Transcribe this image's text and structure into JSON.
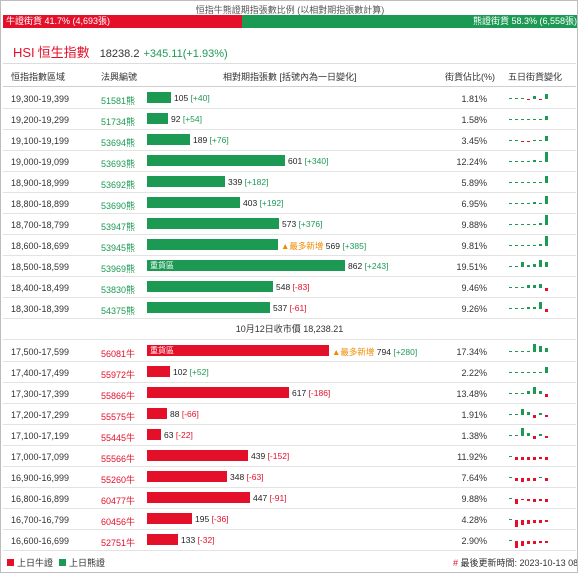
{
  "ratio": {
    "title": "恒指牛熊證期指張數比例 (以相對期指張數計算)",
    "bull_label": "牛證街貨 41.7% (4,693張)",
    "bear_label": "熊證街貨 58.3% (6,558張)",
    "bull_pct": 41.7,
    "bear_pct": 58.3,
    "bull_color": "#e4102a",
    "bear_color": "#1c9a54"
  },
  "index": {
    "code": "HSI",
    "name": "恒生指數",
    "value": "18238.2",
    "change": "+345.11(+1.93%)"
  },
  "headers": {
    "range": "恒指指數區域",
    "code": "法興編號",
    "contracts": "相對期指張數 [括號內為一日變化]",
    "street": "街貨佔比(%)",
    "five_day": "五日街貨變化"
  },
  "close_label": "10月12日收市價 18,238.21",
  "max_contracts": 862,
  "bear_rows": [
    {
      "range": "19,300-19,399",
      "code": "51581熊",
      "count": 105,
      "count_text": "105",
      "delta": "[+40]",
      "est": "1.81%",
      "spark": [
        0,
        0,
        1,
        -0.5,
        3,
        -1,
        6
      ]
    },
    {
      "range": "19,200-19,299",
      "code": "51734熊",
      "count": 92,
      "count_text": "92",
      "delta": "[+54]",
      "est": "1.58%",
      "spark": [
        0,
        0,
        0,
        0,
        1,
        1,
        5
      ]
    },
    {
      "range": "19,100-19,199",
      "code": "53694熊",
      "count": 189,
      "count_text": "189",
      "delta": "[+76]",
      "est": "3.45%",
      "spark": [
        0,
        0,
        -1,
        -1,
        1,
        1,
        6
      ]
    },
    {
      "range": "19,000-19,099",
      "code": "53693熊",
      "count": 601,
      "count_text": "601",
      "delta": "[+340]",
      "est": "12.24%",
      "spark": [
        0,
        0,
        1,
        1,
        2,
        1,
        12
      ]
    },
    {
      "range": "18,900-18,999",
      "code": "53692熊",
      "count": 339,
      "count_text": "339",
      "delta": "[+182]",
      "est": "5.89%",
      "spark": [
        0,
        0,
        1,
        1,
        1,
        1,
        8
      ]
    },
    {
      "range": "18,800-18,899",
      "code": "53690熊",
      "count": 403,
      "count_text": "403",
      "delta": "[+192]",
      "est": "6.95%",
      "spark": [
        0,
        0,
        1,
        1,
        2,
        1,
        9
      ]
    },
    {
      "range": "18,700-18,799",
      "code": "53947熊",
      "count": 573,
      "count_text": "573",
      "delta": "[+376]",
      "est": "9.88%",
      "spark": [
        0,
        0,
        1,
        1,
        1,
        2,
        12
      ]
    },
    {
      "range": "18,600-18,699",
      "code": "53945熊",
      "count": 569,
      "count_text": "569",
      "delta": "[+385]",
      "est": "9.81%",
      "badge": "▲最多新增",
      "spark": [
        0,
        0,
        1,
        1,
        1,
        2,
        12
      ]
    },
    {
      "range": "18,500-18,599",
      "code": "53969熊",
      "count": 862,
      "count_text": "862",
      "delta": "[+243]",
      "est": "19.51%",
      "inbar": "重貨區",
      "spark": [
        0,
        0,
        6,
        2,
        4,
        8,
        6
      ]
    },
    {
      "range": "18,400-18,499",
      "code": "53830熊",
      "count": 548,
      "count_text": "548",
      "delta": "[-83]",
      "est": "9.46%",
      "spark": [
        0,
        0,
        1,
        3,
        4,
        5,
        -4
      ]
    },
    {
      "range": "18,300-18,399",
      "code": "54375熊",
      "count": 537,
      "count_text": "537",
      "delta": "[-61]",
      "est": "9.26%",
      "spark": [
        0,
        0,
        1,
        2,
        2,
        8,
        -3
      ]
    }
  ],
  "bull_rows": [
    {
      "range": "17,500-17,599",
      "code": "56081牛",
      "count": 794,
      "count_text": "794",
      "delta": "[+280]",
      "est": "17.34%",
      "inbar": "重貨區",
      "badge": "▲最多新增",
      "spark": [
        0,
        0,
        0,
        1,
        9,
        7,
        5
      ]
    },
    {
      "range": "17,400-17,499",
      "code": "55972牛",
      "count": 102,
      "count_text": "102",
      "delta": "[+52]",
      "est": "2.22%",
      "spark": [
        0,
        0,
        0,
        0,
        0,
        1,
        7
      ]
    },
    {
      "range": "17,300-17,399",
      "code": "55866牛",
      "count": 617,
      "count_text": "617",
      "delta": "[-186]",
      "est": "13.48%",
      "spark": [
        0,
        1,
        0,
        3,
        8,
        4,
        -3
      ]
    },
    {
      "range": "17,200-17,299",
      "code": "55575牛",
      "count": 88,
      "count_text": "88",
      "delta": "[-66]",
      "est": "1.91%",
      "spark": [
        0,
        0,
        7,
        4,
        -3,
        2,
        -2
      ]
    },
    {
      "range": "17,100-17,199",
      "code": "55445牛",
      "count": 63,
      "count_text": "63",
      "delta": "[-22]",
      "est": "1.38%",
      "spark": [
        0,
        0,
        9,
        3,
        -3,
        2,
        -2
      ]
    },
    {
      "range": "17,000-17,099",
      "code": "55566牛",
      "count": 439,
      "count_text": "439",
      "delta": "[-152]",
      "est": "11.92%",
      "spark": [
        0,
        -3,
        -4,
        -3,
        -4,
        -2,
        -4
      ]
    },
    {
      "range": "16,900-16,999",
      "code": "55260牛",
      "count": 348,
      "count_text": "348",
      "delta": "[-63]",
      "est": "7.64%",
      "spark": [
        0,
        -3,
        -5,
        -3,
        -4,
        1,
        -3
      ]
    },
    {
      "range": "16,800-16,899",
      "code": "60477牛",
      "count": 447,
      "count_text": "447",
      "delta": "[-91]",
      "est": "9.88%",
      "spark": [
        0,
        -6,
        -1,
        -2,
        -3,
        -2,
        -4
      ]
    },
    {
      "range": "16,700-16,799",
      "code": "60456牛",
      "count": 195,
      "count_text": "195",
      "delta": "[-36]",
      "est": "4.28%",
      "spark": [
        0,
        -8,
        -6,
        -5,
        -3,
        -3,
        -2
      ]
    },
    {
      "range": "16,600-16,699",
      "code": "52751牛",
      "count": 133,
      "count_text": "133",
      "delta": "[-32]",
      "est": "2.90%",
      "spark": [
        0,
        -8,
        -6,
        -4,
        -3,
        -2,
        -2
      ]
    }
  ],
  "legend": {
    "bull": "上日牛證",
    "bear": "上日熊證",
    "update": "最後更新時間: 2023-10-13 08:"
  }
}
